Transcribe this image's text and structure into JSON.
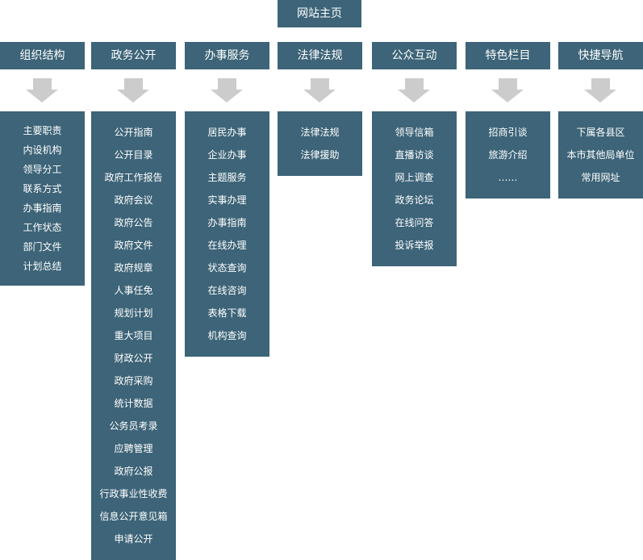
{
  "home": "网站主页",
  "colors": {
    "box": "#3d6478",
    "arrow": "#cccccc",
    "text": "#ffffff"
  },
  "columns": [
    {
      "title": "组织结构",
      "items": [
        "主要职责",
        "内设机构",
        "领导分工",
        "联系方式",
        "办事指南",
        "工作状态",
        "部门文件",
        "计划总结"
      ]
    },
    {
      "title": "政务公开",
      "items": [
        "公开指南",
        "公开目录",
        "政府工作报告",
        "政府会议",
        "政府公告",
        "政府文件",
        "政府规章",
        "人事任免",
        "规划计划",
        "重大项目",
        "财政公开",
        "政府采购",
        "统计数据",
        "公务员考录",
        "应聘管理",
        "政府公报",
        "行政事业性收费",
        "信息公开意见箱",
        "申请公开"
      ]
    },
    {
      "title": "办事服务",
      "items": [
        "居民办事",
        "企业办事",
        "主题服务",
        "实事办理",
        "办事指南",
        "在线办理",
        "状态查询",
        "在线咨询",
        "表格下载",
        "机构查询"
      ]
    },
    {
      "title": "法律法规",
      "items": [
        "法律法规",
        "法律援助"
      ]
    },
    {
      "title": "公众互动",
      "items": [
        "领导信箱",
        "直播访谈",
        "网上调查",
        "政务论坛",
        "在线问答",
        "投诉举报"
      ]
    },
    {
      "title": "特色栏目",
      "items": [
        "招商引谈",
        "旅游介绍",
        "……"
      ]
    },
    {
      "title": "快捷导航",
      "items": [
        "下属各县区",
        "本市其他局单位",
        "常用网址"
      ]
    }
  ]
}
